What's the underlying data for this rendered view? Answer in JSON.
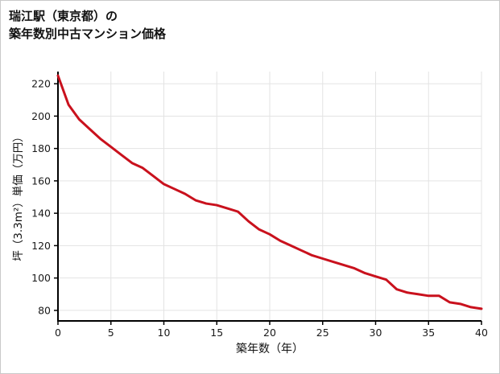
{
  "header": {
    "line1": "瑞江駅（東京都）の",
    "line2": "築年数別中古マンション価格"
  },
  "chart_data": {
    "type": "line",
    "title": "瑞江駅（東京都）の築年数別中古マンション価格",
    "xlabel": "築年数（年）",
    "ylabel": "坪（3.3m²）単価（万円）",
    "x": [
      0,
      1,
      2,
      3,
      4,
      5,
      6,
      7,
      8,
      9,
      10,
      11,
      12,
      13,
      14,
      15,
      16,
      17,
      18,
      19,
      20,
      21,
      22,
      23,
      24,
      25,
      26,
      27,
      28,
      29,
      30,
      31,
      32,
      33,
      34,
      35,
      36,
      37,
      38,
      39,
      40
    ],
    "values": [
      225,
      207,
      198,
      192,
      186,
      181,
      176,
      171,
      168,
      163,
      158,
      155,
      152,
      148,
      146,
      145,
      143,
      141,
      135,
      130,
      127,
      123,
      120,
      117,
      114,
      112,
      110,
      108,
      106,
      103,
      101,
      99,
      93,
      91,
      90,
      89,
      89,
      85,
      84,
      82,
      81
    ],
    "xlim": [
      0,
      40
    ],
    "ylim": [
      73.5,
      227.5
    ],
    "xticks": [
      0,
      5,
      10,
      15,
      20,
      25,
      30,
      35,
      40
    ],
    "yticks": [
      80,
      100,
      120,
      140,
      160,
      180,
      200,
      220
    ],
    "grid": true,
    "grid_color": "#e3e3e3",
    "axis_color": "#000000",
    "tick_label_color": "#1a1a1a",
    "line_color": "#c9111d",
    "legend": "none"
  }
}
